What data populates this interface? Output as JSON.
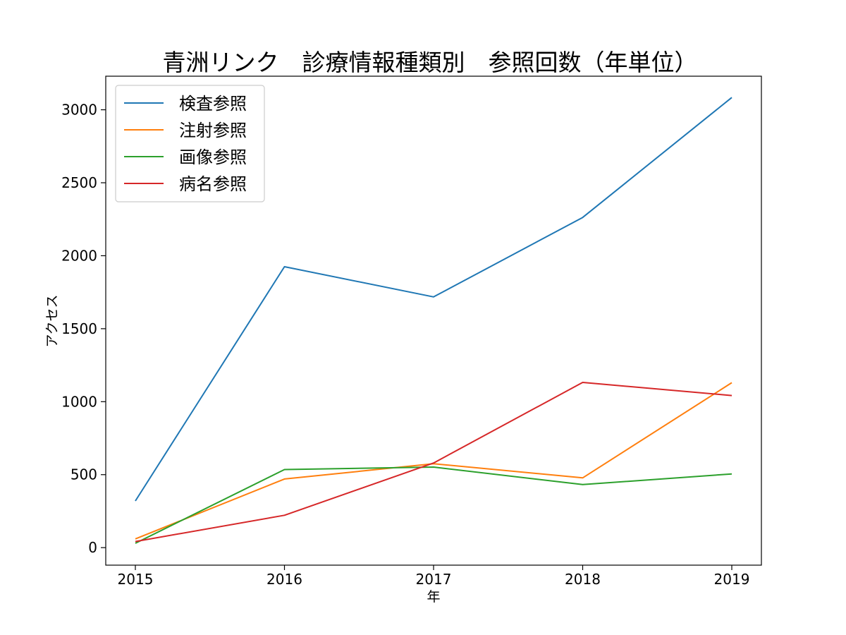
{
  "chart_data": {
    "type": "line",
    "title": "青洲リンク　診療情報種類別　参照回数（年単位）",
    "xlabel": "年",
    "ylabel": "アクセス",
    "categories": [
      "2015",
      "2016",
      "2017",
      "2018",
      "2019"
    ],
    "yticks": [
      "0",
      "500",
      "1000",
      "1500",
      "2000",
      "2500",
      "3000"
    ],
    "ylim": [
      -120,
      3230
    ],
    "grid": false,
    "legend_position": "top-left",
    "series": [
      {
        "name": "検査参照",
        "color": "#1f77b4",
        "values": [
          320,
          1925,
          1718,
          2262,
          3084
        ]
      },
      {
        "name": "注射参照",
        "color": "#ff7f0e",
        "values": [
          60,
          470,
          575,
          478,
          1130
        ]
      },
      {
        "name": "画像参照",
        "color": "#2ca02c",
        "values": [
          30,
          535,
          552,
          432,
          505
        ]
      },
      {
        "name": "病名参照",
        "color": "#d62728",
        "values": [
          42,
          222,
          580,
          1132,
          1042
        ]
      }
    ]
  }
}
